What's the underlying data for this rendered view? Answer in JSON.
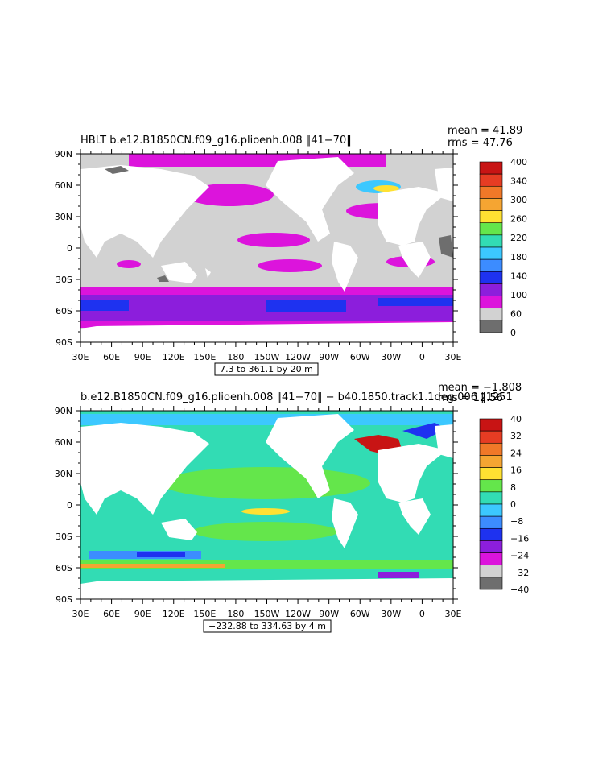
{
  "chart_data": [
    {
      "type": "heatmap",
      "title": "HBLT b.e12.B1850CN.f09_g16.plioenh.008 ‖41−70‖",
      "stats": {
        "mean": "mean = 41.89",
        "rms": "rms = 47.76"
      },
      "x_ticks": [
        "30E",
        "60E",
        "90E",
        "120E",
        "150E",
        "180",
        "150W",
        "120W",
        "90W",
        "60W",
        "30W",
        "0",
        "30E"
      ],
      "y_ticks": [
        "90N",
        "60N",
        "30N",
        "0",
        "30S",
        "60S",
        "90S"
      ],
      "ylim": [
        -90,
        90
      ],
      "xlim": [
        30,
        390
      ],
      "range_label": "7.3 to 361.1 by 20 m",
      "colorbar": {
        "labels": [
          "400",
          "340",
          "300",
          "260",
          "220",
          "180",
          "140",
          "100",
          "60",
          "0"
        ],
        "colors": [
          "#c81414",
          "#e63c23",
          "#f07828",
          "#f5a532",
          "#ffe132",
          "#64e64b",
          "#32dcb4",
          "#3cc8ff",
          "#3c8cff",
          "#1e32f0",
          "#8c1edc",
          "#dc14dc",
          "#d2d2d2",
          "#6e6e6e"
        ]
      }
    },
    {
      "type": "heatmap",
      "title": "b.e12.B1850CN.f09_g16.plioenh.008 ‖41−70‖ − b40.1850.track1.1deg.006 ‖1251",
      "stats": {
        "mean": "mean = −1.808",
        "rms": "rms = 12.56"
      },
      "x_ticks": [
        "30E",
        "60E",
        "90E",
        "120E",
        "150E",
        "180",
        "150W",
        "120W",
        "90W",
        "60W",
        "30W",
        "0",
        "30E"
      ],
      "y_ticks": [
        "90N",
        "60N",
        "30N",
        "0",
        "30S",
        "60S",
        "90S"
      ],
      "ylim": [
        -90,
        90
      ],
      "xlim": [
        30,
        390
      ],
      "range_label": "−232.88 to 334.63 by 4 m",
      "colorbar": {
        "labels": [
          "40",
          "32",
          "24",
          "16",
          "8",
          "0",
          "−8",
          "−16",
          "−24",
          "−32",
          "−40"
        ],
        "colors": [
          "#c81414",
          "#e63c23",
          "#f07828",
          "#f5a532",
          "#ffe132",
          "#64e64b",
          "#32dcb4",
          "#3cc8ff",
          "#3c8cff",
          "#1e32f0",
          "#8c1edc",
          "#dc14dc",
          "#d2d2d2",
          "#6e6e6e"
        ]
      }
    }
  ]
}
